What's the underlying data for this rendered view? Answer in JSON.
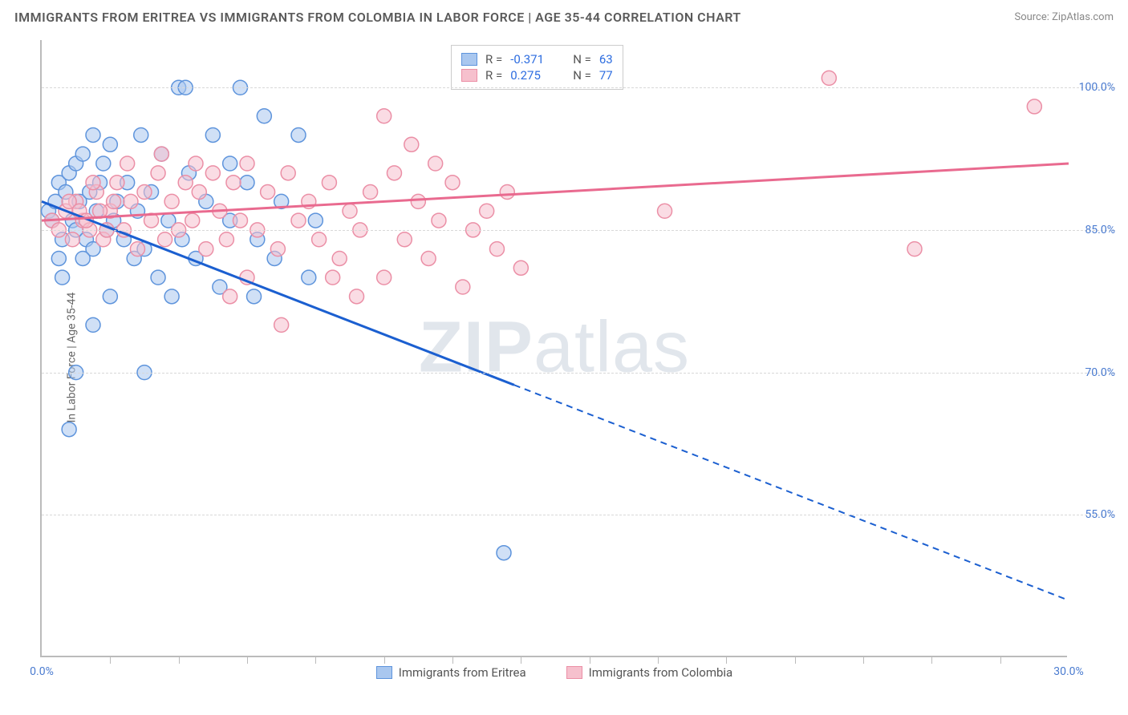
{
  "title": "IMMIGRANTS FROM ERITREA VS IMMIGRANTS FROM COLOMBIA IN LABOR FORCE | AGE 35-44 CORRELATION CHART",
  "source_label": "Source: ZipAtlas.com",
  "y_axis_label": "In Labor Force | Age 35-44",
  "watermark_bold": "ZIP",
  "watermark_rest": "atlas",
  "chart": {
    "type": "scatter",
    "xlim": [
      0,
      30
    ],
    "ylim": [
      40,
      105
    ],
    "x_ticks_minor": [
      2,
      4,
      6,
      8,
      10,
      12,
      14,
      16,
      18,
      20,
      22,
      24,
      26,
      28
    ],
    "x_ticks_labeled": [
      {
        "v": 0,
        "label": "0.0%"
      },
      {
        "v": 30,
        "label": "30.0%"
      }
    ],
    "y_gridlines": [
      55,
      70,
      85,
      100
    ],
    "y_tick_labels": [
      {
        "v": 55,
        "label": "55.0%"
      },
      {
        "v": 70,
        "label": "70.0%"
      },
      {
        "v": 85,
        "label": "85.0%"
      },
      {
        "v": 100,
        "label": "100.0%"
      }
    ],
    "grid_color": "#d8d8d8",
    "background_color": "#ffffff",
    "marker_radius": 9,
    "marker_opacity": 0.55,
    "series": [
      {
        "key": "eritrea",
        "label": "Immigrants from Eritrea",
        "fill": "#a9c7ef",
        "stroke": "#5e94dc",
        "line_color": "#1b5fd0",
        "R": "-0.371",
        "N": "63",
        "trend": {
          "x1": 0,
          "y1": 88,
          "x2": 30,
          "y2": 46,
          "solid_until_x": 13.8
        },
        "points": [
          [
            0.2,
            87
          ],
          [
            0.3,
            86
          ],
          [
            0.4,
            88
          ],
          [
            0.5,
            90
          ],
          [
            0.6,
            84
          ],
          [
            0.7,
            89
          ],
          [
            0.8,
            91
          ],
          [
            0.9,
            86
          ],
          [
            1.0,
            92
          ],
          [
            1.0,
            85
          ],
          [
            1.1,
            88
          ],
          [
            1.2,
            93
          ],
          [
            1.3,
            84
          ],
          [
            1.4,
            89
          ],
          [
            1.5,
            95
          ],
          [
            1.5,
            83
          ],
          [
            1.6,
            87
          ],
          [
            1.7,
            90
          ],
          [
            1.8,
            92
          ],
          [
            1.9,
            85
          ],
          [
            2.0,
            94
          ],
          [
            2.1,
            86
          ],
          [
            2.2,
            88
          ],
          [
            2.4,
            84
          ],
          [
            2.5,
            90
          ],
          [
            2.7,
            82
          ],
          [
            2.8,
            87
          ],
          [
            2.9,
            95
          ],
          [
            3.0,
            83
          ],
          [
            3.2,
            89
          ],
          [
            3.4,
            80
          ],
          [
            3.5,
            93
          ],
          [
            3.7,
            86
          ],
          [
            3.8,
            78
          ],
          [
            4.0,
            100
          ],
          [
            4.1,
            84
          ],
          [
            4.3,
            91
          ],
          [
            4.5,
            82
          ],
          [
            4.8,
            88
          ],
          [
            5.0,
            95
          ],
          [
            5.2,
            79
          ],
          [
            5.5,
            86
          ],
          [
            5.8,
            100
          ],
          [
            6.0,
            90
          ],
          [
            6.3,
            84
          ],
          [
            6.5,
            97
          ],
          [
            6.8,
            82
          ],
          [
            7.0,
            88
          ],
          [
            7.5,
            95
          ],
          [
            7.8,
            80
          ],
          [
            8.0,
            86
          ],
          [
            0.8,
            64
          ],
          [
            1.0,
            70
          ],
          [
            1.2,
            82
          ],
          [
            0.6,
            80
          ],
          [
            2.0,
            78
          ],
          [
            3.0,
            70
          ],
          [
            1.5,
            75
          ],
          [
            0.5,
            82
          ],
          [
            13.5,
            51
          ],
          [
            4.2,
            100
          ],
          [
            5.5,
            92
          ],
          [
            6.2,
            78
          ]
        ]
      },
      {
        "key": "colombia",
        "label": "Immigrants from Colombia",
        "fill": "#f6c0cd",
        "stroke": "#eb8fa6",
        "line_color": "#e96a8f",
        "R": "0.275",
        "N": "77",
        "trend": {
          "x1": 0,
          "y1": 86,
          "x2": 30,
          "y2": 92,
          "solid_until_x": 30
        },
        "points": [
          [
            0.3,
            86
          ],
          [
            0.5,
            85
          ],
          [
            0.7,
            87
          ],
          [
            0.9,
            84
          ],
          [
            1.0,
            88
          ],
          [
            1.2,
            86
          ],
          [
            1.4,
            85
          ],
          [
            1.6,
            89
          ],
          [
            1.8,
            84
          ],
          [
            2.0,
            87
          ],
          [
            2.2,
            90
          ],
          [
            2.4,
            85
          ],
          [
            2.6,
            88
          ],
          [
            2.8,
            83
          ],
          [
            3.0,
            89
          ],
          [
            3.2,
            86
          ],
          [
            3.4,
            91
          ],
          [
            3.6,
            84
          ],
          [
            3.8,
            88
          ],
          [
            4.0,
            85
          ],
          [
            4.2,
            90
          ],
          [
            4.4,
            86
          ],
          [
            4.6,
            89
          ],
          [
            4.8,
            83
          ],
          [
            5.0,
            91
          ],
          [
            5.2,
            87
          ],
          [
            5.4,
            84
          ],
          [
            5.6,
            90
          ],
          [
            5.8,
            86
          ],
          [
            6.0,
            92
          ],
          [
            6.3,
            85
          ],
          [
            6.6,
            89
          ],
          [
            6.9,
            83
          ],
          [
            7.2,
            91
          ],
          [
            7.5,
            86
          ],
          [
            7.8,
            88
          ],
          [
            8.1,
            84
          ],
          [
            8.4,
            90
          ],
          [
            8.7,
            82
          ],
          [
            9.0,
            87
          ],
          [
            9.3,
            85
          ],
          [
            9.6,
            89
          ],
          [
            10.0,
            80
          ],
          [
            10.3,
            91
          ],
          [
            10.6,
            84
          ],
          [
            11.0,
            88
          ],
          [
            11.3,
            82
          ],
          [
            11.6,
            86
          ],
          [
            12.0,
            90
          ],
          [
            12.3,
            79
          ],
          [
            12.6,
            85
          ],
          [
            13.0,
            87
          ],
          [
            13.3,
            83
          ],
          [
            13.6,
            89
          ],
          [
            14.0,
            81
          ],
          [
            10.0,
            97
          ],
          [
            10.8,
            94
          ],
          [
            11.5,
            92
          ],
          [
            8.5,
            80
          ],
          [
            9.2,
            78
          ],
          [
            7.0,
            75
          ],
          [
            6.0,
            80
          ],
          [
            5.5,
            78
          ],
          [
            18.2,
            87
          ],
          [
            23.0,
            101
          ],
          [
            25.5,
            83
          ],
          [
            29.0,
            98
          ],
          [
            2.5,
            92
          ],
          [
            3.5,
            93
          ],
          [
            4.5,
            92
          ],
          [
            1.5,
            90
          ],
          [
            0.8,
            88
          ],
          [
            1.1,
            87
          ],
          [
            1.3,
            86
          ],
          [
            1.7,
            87
          ],
          [
            1.9,
            85
          ],
          [
            2.1,
            88
          ]
        ]
      }
    ]
  },
  "legend_box": {
    "rows": [
      {
        "series_key": "eritrea"
      },
      {
        "series_key": "colombia"
      }
    ]
  }
}
